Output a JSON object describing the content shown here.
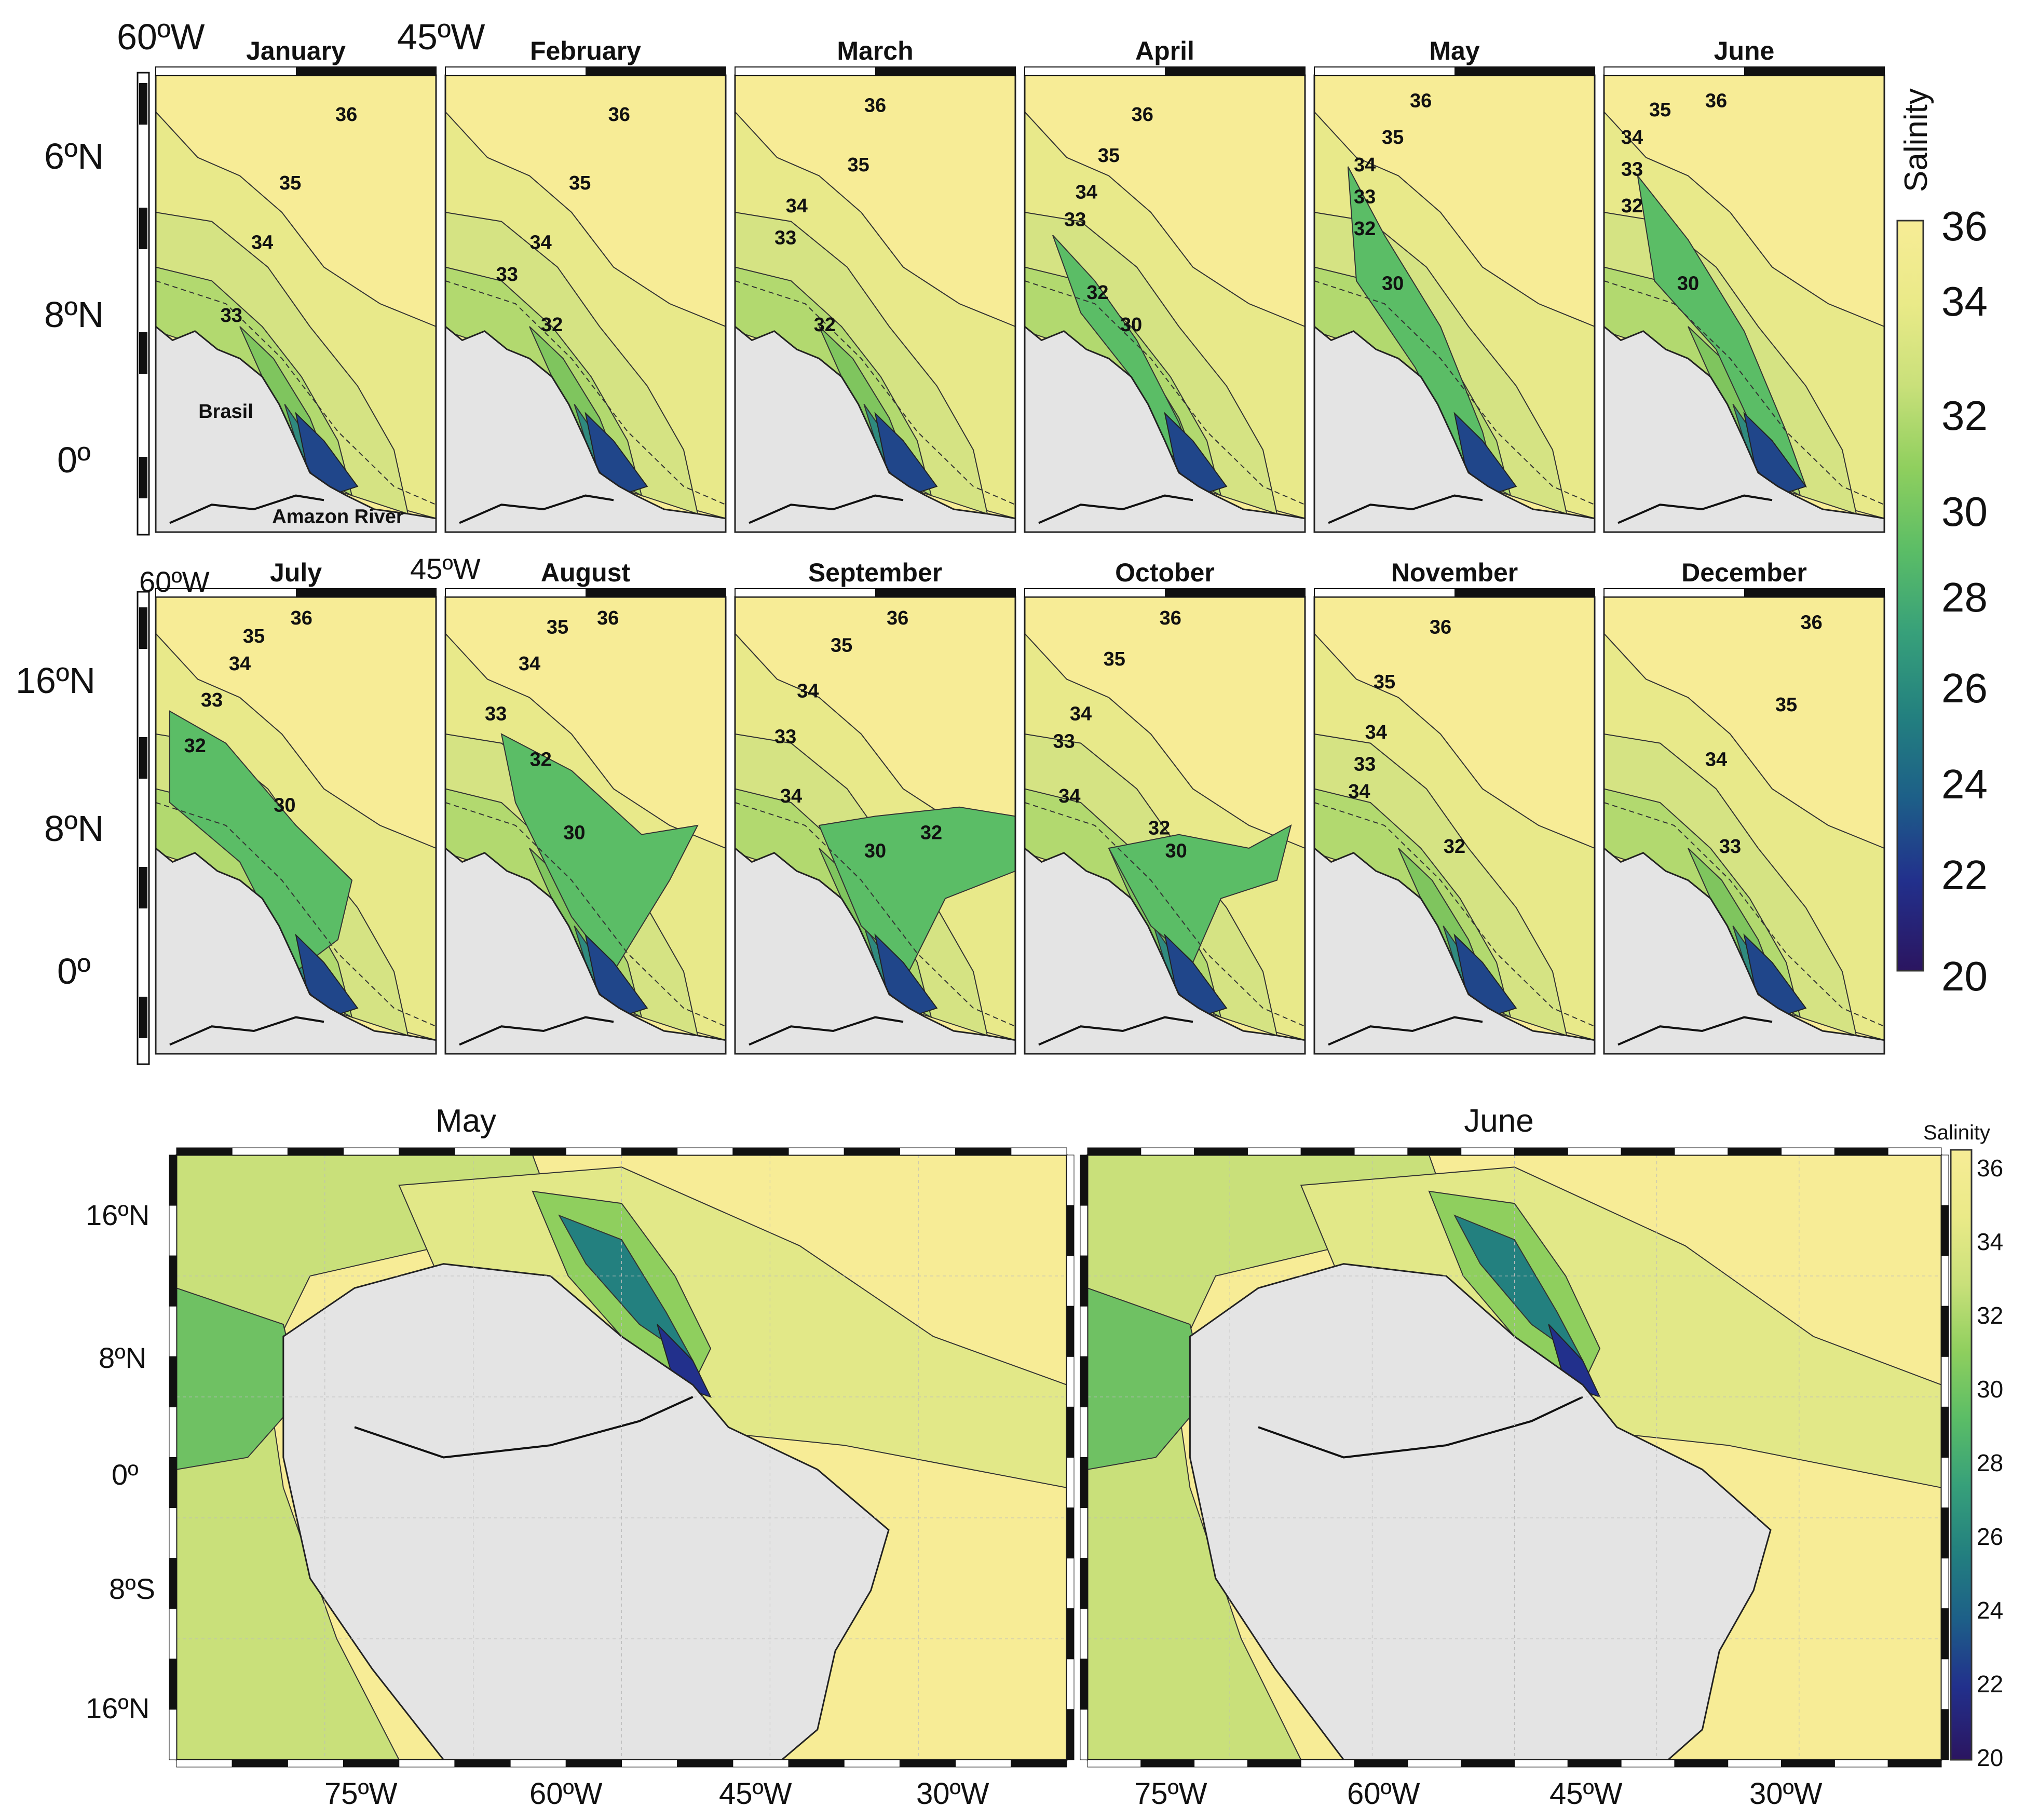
{
  "colorbar_top": {
    "title": "Salinity",
    "ticks": [
      "36",
      "34",
      "32",
      "30",
      "28",
      "26",
      "24",
      "22",
      "20"
    ],
    "colors": [
      "#f7ec96",
      "#eaea88",
      "#c9e07a",
      "#8fcf5e",
      "#5bbd66",
      "#37a07a",
      "#23807f",
      "#1d5f88",
      "#22308c",
      "#2b1560"
    ]
  },
  "colorbar_bottom": {
    "title": "Salinity",
    "ticks": [
      "36",
      "34",
      "32",
      "30",
      "28",
      "26",
      "24",
      "22",
      "20"
    ]
  },
  "top_axis": {
    "row1_lon": [
      "60ºW",
      "45ºW"
    ],
    "row1_lat": [
      "6ºN",
      "8ºN",
      "0º"
    ],
    "row2_lon": [
      "60ºW",
      "45ºW"
    ],
    "row2_lat": [
      "16ºN",
      "8ºN",
      "0º"
    ]
  },
  "map_labels": {
    "brasil": "Brasil",
    "amazon": "Amazon River"
  },
  "months": [
    {
      "name": "January",
      "labels": [
        "36",
        "35",
        "34",
        "33"
      ]
    },
    {
      "name": "February",
      "labels": [
        "36",
        "35",
        "34",
        "33",
        "32"
      ]
    },
    {
      "name": "March",
      "labels": [
        "36",
        "35",
        "34",
        "33",
        "32"
      ]
    },
    {
      "name": "April",
      "labels": [
        "36",
        "35",
        "34",
        "33",
        "32",
        "30"
      ]
    },
    {
      "name": "May",
      "labels": [
        "36",
        "35",
        "34",
        "33",
        "32",
        "30"
      ]
    },
    {
      "name": "June",
      "labels": [
        "36",
        "35",
        "34",
        "33",
        "32",
        "30"
      ]
    },
    {
      "name": "July",
      "labels": [
        "36",
        "35",
        "34",
        "33",
        "32",
        "30"
      ]
    },
    {
      "name": "August",
      "labels": [
        "36",
        "35",
        "34",
        "33",
        "32",
        "30"
      ]
    },
    {
      "name": "September",
      "labels": [
        "36",
        "35",
        "34",
        "33",
        "34",
        "32",
        "30"
      ]
    },
    {
      "name": "October",
      "labels": [
        "36",
        "35",
        "34",
        "33",
        "34",
        "32",
        "30"
      ]
    },
    {
      "name": "November",
      "labels": [
        "36",
        "35",
        "34",
        "33",
        "34",
        "32"
      ]
    },
    {
      "name": "December",
      "labels": [
        "36",
        "35",
        "34",
        "33"
      ]
    }
  ],
  "bottom_maps": [
    {
      "title": "May"
    },
    {
      "title": "June"
    }
  ],
  "bottom_axis": {
    "lat": [
      "16ºN",
      "8ºN",
      "0º",
      "8ºS",
      "16ºN"
    ],
    "lon_left": [
      "75ºW",
      "60ºW",
      "45ºW",
      "30ºW"
    ],
    "lon_right": [
      "75ºW",
      "60ºW",
      "45ºW",
      "30ºW"
    ]
  }
}
